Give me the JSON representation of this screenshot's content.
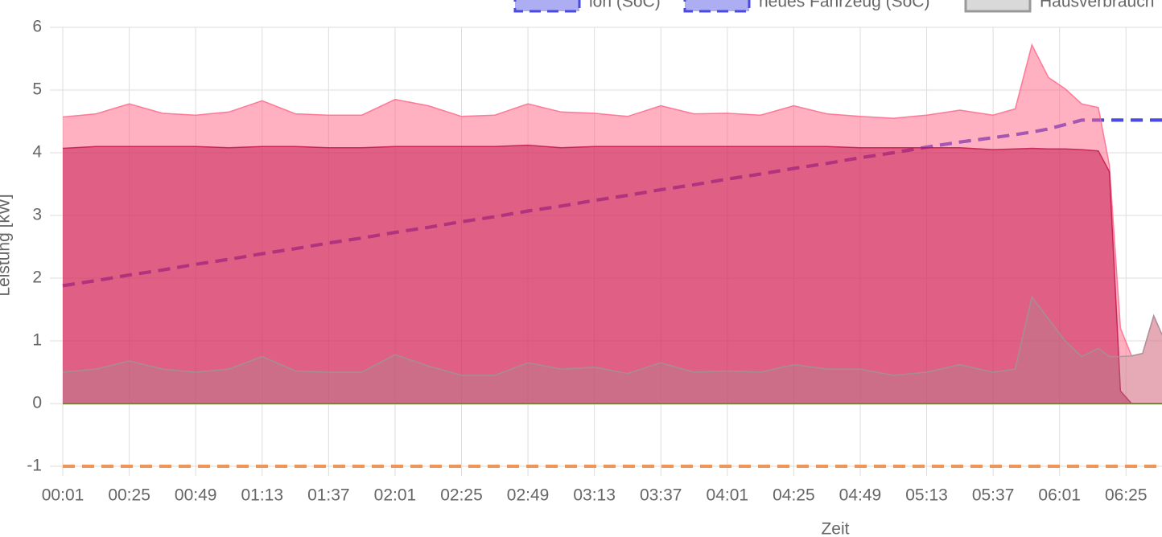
{
  "chart_data": {
    "type": "line",
    "x_label": "Zeit",
    "y_label": "Leistung [kW]",
    "xlim": [
      "00:00",
      "06:38"
    ],
    "ylim": [
      -1,
      6
    ],
    "xticks": [
      "00:01",
      "00:25",
      "00:49",
      "01:13",
      "01:37",
      "02:01",
      "02:25",
      "02:49",
      "03:13",
      "03:37",
      "04:01",
      "04:25",
      "04:49",
      "05:13",
      "05:37",
      "06:01",
      "06:25"
    ],
    "yticks": [
      -1,
      0,
      1,
      2,
      3,
      4,
      5,
      6
    ],
    "grid": true,
    "x": [
      "00:01",
      "00:13",
      "00:25",
      "00:37",
      "00:49",
      "01:01",
      "01:13",
      "01:25",
      "01:37",
      "01:49",
      "02:01",
      "02:13",
      "02:25",
      "02:37",
      "02:49",
      "03:01",
      "03:13",
      "03:25",
      "03:37",
      "03:49",
      "04:01",
      "04:13",
      "04:25",
      "04:37",
      "04:49",
      "05:01",
      "05:13",
      "05:25",
      "05:37",
      "05:45",
      "05:51",
      "05:57",
      "06:03",
      "06:09",
      "06:15",
      "06:19",
      "06:23",
      "06:27",
      "06:31",
      "06:35",
      "06:38"
    ],
    "series": [
      {
        "name": "ion (SoC)",
        "type": "line",
        "dashed": true,
        "color": "#4a4ae0",
        "values": [
          1.88,
          1.96,
          2.05,
          2.13,
          2.22,
          2.3,
          2.39,
          2.47,
          2.56,
          2.64,
          2.73,
          2.81,
          2.9,
          2.98,
          3.07,
          3.15,
          3.24,
          3.32,
          3.41,
          3.49,
          3.58,
          3.66,
          3.75,
          3.83,
          3.92,
          4.0,
          4.09,
          4.17,
          4.24,
          4.29,
          4.33,
          4.38,
          4.45,
          4.52,
          4.52,
          4.52,
          4.52,
          4.52,
          4.52,
          4.52,
          4.52
        ]
      },
      {
        "name": "neues Fahrzeug (SoC)",
        "type": "line",
        "dashed": true,
        "color": "#4a4ae0",
        "values": [
          1.88,
          1.96,
          2.05,
          2.13,
          2.22,
          2.3,
          2.39,
          2.47,
          2.56,
          2.64,
          2.73,
          2.81,
          2.9,
          2.98,
          3.07,
          3.15,
          3.24,
          3.32,
          3.41,
          3.49,
          3.58,
          3.66,
          3.75,
          3.83,
          3.92,
          4.0,
          4.09,
          4.17,
          4.24,
          4.29,
          4.33,
          4.38,
          4.45,
          4.52,
          4.52,
          4.52,
          4.52,
          4.52,
          4.52,
          4.52,
          4.52
        ]
      },
      {
        "type": "area",
        "color": "#ff6384",
        "values": [
          4.57,
          4.62,
          4.78,
          4.63,
          4.6,
          4.65,
          4.83,
          4.62,
          4.6,
          4.6,
          4.85,
          4.75,
          4.58,
          4.6,
          4.78,
          4.65,
          4.63,
          4.58,
          4.75,
          4.62,
          4.63,
          4.6,
          4.75,
          4.62,
          4.58,
          4.55,
          4.6,
          4.68,
          4.6,
          4.7,
          5.72,
          5.2,
          5.02,
          4.78,
          4.72,
          3.8,
          1.2,
          0.76,
          0.8,
          1.4,
          1.1
        ]
      },
      {
        "type": "area",
        "color": "#c01048",
        "values": [
          4.07,
          4.1,
          4.1,
          4.1,
          4.1,
          4.08,
          4.1,
          4.1,
          4.08,
          4.08,
          4.1,
          4.1,
          4.1,
          4.1,
          4.12,
          4.08,
          4.1,
          4.1,
          4.1,
          4.1,
          4.1,
          4.1,
          4.1,
          4.1,
          4.08,
          4.08,
          4.08,
          4.08,
          4.05,
          4.06,
          4.07,
          4.06,
          4.06,
          4.05,
          4.03,
          3.7,
          0.2,
          0,
          0,
          0,
          0
        ]
      },
      {
        "name": "Hausverbrauch",
        "type": "area",
        "color": "#999999",
        "values": [
          0.5,
          0.55,
          0.68,
          0.55,
          0.5,
          0.55,
          0.75,
          0.52,
          0.5,
          0.5,
          0.78,
          0.6,
          0.45,
          0.45,
          0.65,
          0.55,
          0.58,
          0.48,
          0.65,
          0.5,
          0.52,
          0.5,
          0.62,
          0.55,
          0.55,
          0.45,
          0.5,
          0.62,
          0.5,
          0.55,
          1.7,
          1.35,
          1.0,
          0.75,
          0.88,
          0.75,
          0.75,
          0.76,
          0.8,
          1.4,
          1.1
        ]
      },
      {
        "type": "line",
        "dashed": true,
        "color": "#f0955a",
        "values": [
          -1,
          -1,
          -1,
          -1,
          -1,
          -1,
          -1,
          -1,
          -1,
          -1,
          -1,
          -1,
          -1,
          -1,
          -1,
          -1,
          -1,
          -1,
          -1,
          -1,
          -1,
          -1,
          -1,
          -1,
          -1,
          -1,
          -1,
          -1,
          -1,
          -1,
          -1,
          -1,
          -1,
          -1,
          -1,
          -1,
          -1,
          -1,
          -1,
          -1,
          -1
        ]
      },
      {
        "type": "line",
        "dashed": false,
        "color": "#6a8a3a",
        "values": [
          0,
          0,
          0,
          0,
          0,
          0,
          0,
          0,
          0,
          0,
          0,
          0,
          0,
          0,
          0,
          0,
          0,
          0,
          0,
          0,
          0,
          0,
          0,
          0,
          0,
          0,
          0,
          0,
          0,
          0,
          0,
          0,
          0,
          0,
          0,
          0,
          0,
          0,
          0,
          0,
          0
        ]
      }
    ]
  }
}
